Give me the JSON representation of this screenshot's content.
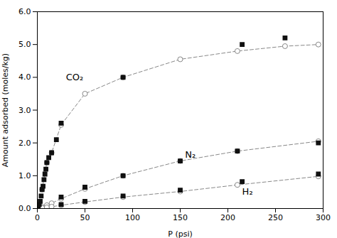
{
  "chart_data": {
    "type": "line",
    "xlabel": "P (psi)",
    "ylabel": "Amount adsorbed (moles/kg)",
    "xlim": [
      0,
      300
    ],
    "ylim": [
      0,
      6
    ],
    "xticks": [
      0,
      50,
      100,
      150,
      200,
      250,
      300
    ],
    "yticks": [
      0,
      1,
      2,
      3,
      4,
      5,
      6
    ],
    "grid": false,
    "series": [
      {
        "type": "line",
        "color": "#888888",
        "marker": "circle",
        "line_style": "dashed",
        "x": [
          5,
          10,
          15,
          25,
          50,
          90,
          150,
          210,
          260,
          295
        ],
        "values": [
          0.58,
          1.4,
          1.7,
          2.55,
          3.5,
          4.0,
          4.55,
          4.8,
          4.95,
          5.0
        ]
      },
      {
        "type": "line",
        "color": "#888888",
        "marker": "circle",
        "line_style": "dashed",
        "x": [
          5,
          10,
          15,
          25,
          50,
          90,
          150,
          210,
          295
        ],
        "values": [
          0.05,
          0.1,
          0.16,
          0.3,
          0.6,
          1.0,
          1.45,
          1.75,
          2.05
        ]
      },
      {
        "type": "line",
        "color": "#888888",
        "marker": "circle",
        "line_style": "dashed",
        "x": [
          5,
          10,
          15,
          25,
          50,
          90,
          150,
          210,
          295
        ],
        "values": [
          0.018,
          0.035,
          0.055,
          0.1,
          0.2,
          0.35,
          0.52,
          0.72,
          0.98
        ]
      },
      {
        "type": "scatter",
        "color": "#111111",
        "marker": "square",
        "x": [
          1,
          2,
          3,
          4,
          5,
          6,
          7,
          8,
          9,
          10,
          12,
          15,
          20,
          25,
          90,
          215,
          260
        ],
        "values": [
          0.05,
          0.12,
          0.22,
          0.38,
          0.58,
          0.68,
          0.88,
          1.05,
          1.2,
          1.4,
          1.55,
          1.7,
          2.1,
          2.6,
          4.0,
          5.0,
          5.2
        ]
      },
      {
        "type": "scatter",
        "color": "#111111",
        "marker": "square",
        "x": [
          25,
          50,
          90,
          150,
          210,
          295
        ],
        "values": [
          0.35,
          0.65,
          1.0,
          1.45,
          1.75,
          2.0
        ]
      },
      {
        "type": "scatter",
        "color": "#111111",
        "marker": "square",
        "x": [
          25,
          50,
          90,
          150,
          215,
          295
        ],
        "values": [
          0.12,
          0.22,
          0.38,
          0.56,
          0.82,
          1.05
        ]
      }
    ],
    "annotations": [
      {
        "text": "CO₂",
        "x": 30,
        "y": 3.9
      },
      {
        "text": "N₂",
        "x": 155,
        "y": 1.55
      },
      {
        "text": "H₂",
        "x": 215,
        "y": 0.42
      }
    ]
  }
}
